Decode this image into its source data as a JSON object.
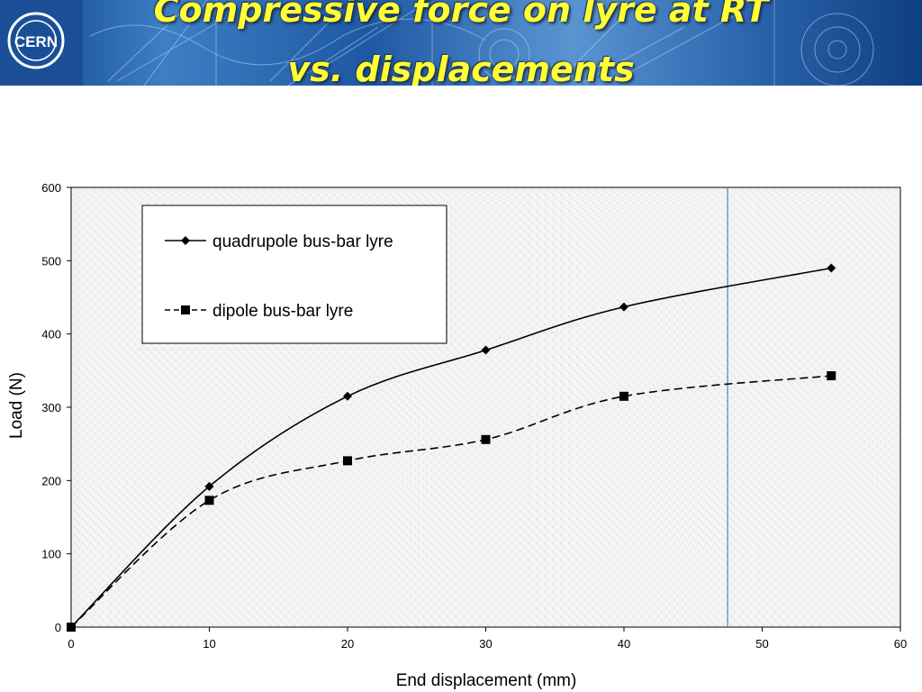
{
  "slide": {
    "title": "Compressive force on lyre at RT\nvs. displacements",
    "logo_text": "CERN"
  },
  "chart_data": {
    "type": "line",
    "xlabel": "End displacement (mm)",
    "ylabel": "Load (N)",
    "xlim": [
      0,
      60
    ],
    "ylim": [
      0,
      600
    ],
    "xticks": [
      0,
      10,
      20,
      30,
      40,
      50,
      60
    ],
    "yticks": [
      0,
      100,
      200,
      300,
      400,
      500,
      600
    ],
    "grid": false,
    "legend_position": "top-left",
    "vertical_marker_x": 47.5,
    "series": [
      {
        "name": "quadrupole bus-bar lyre",
        "marker": "diamond",
        "line_style": "solid",
        "x": [
          0,
          10,
          20,
          30,
          40,
          55
        ],
        "y": [
          0,
          192,
          315,
          378,
          437,
          490
        ]
      },
      {
        "name": "dipole bus-bar lyre",
        "marker": "square",
        "line_style": "dashed",
        "x": [
          0,
          10,
          20,
          30,
          40,
          55
        ],
        "y": [
          0,
          173,
          227,
          256,
          315,
          343
        ]
      }
    ],
    "colors": {
      "series": "#000000",
      "marker_line": "#5b8bb0",
      "plot_background": "#f4f4f4"
    }
  }
}
